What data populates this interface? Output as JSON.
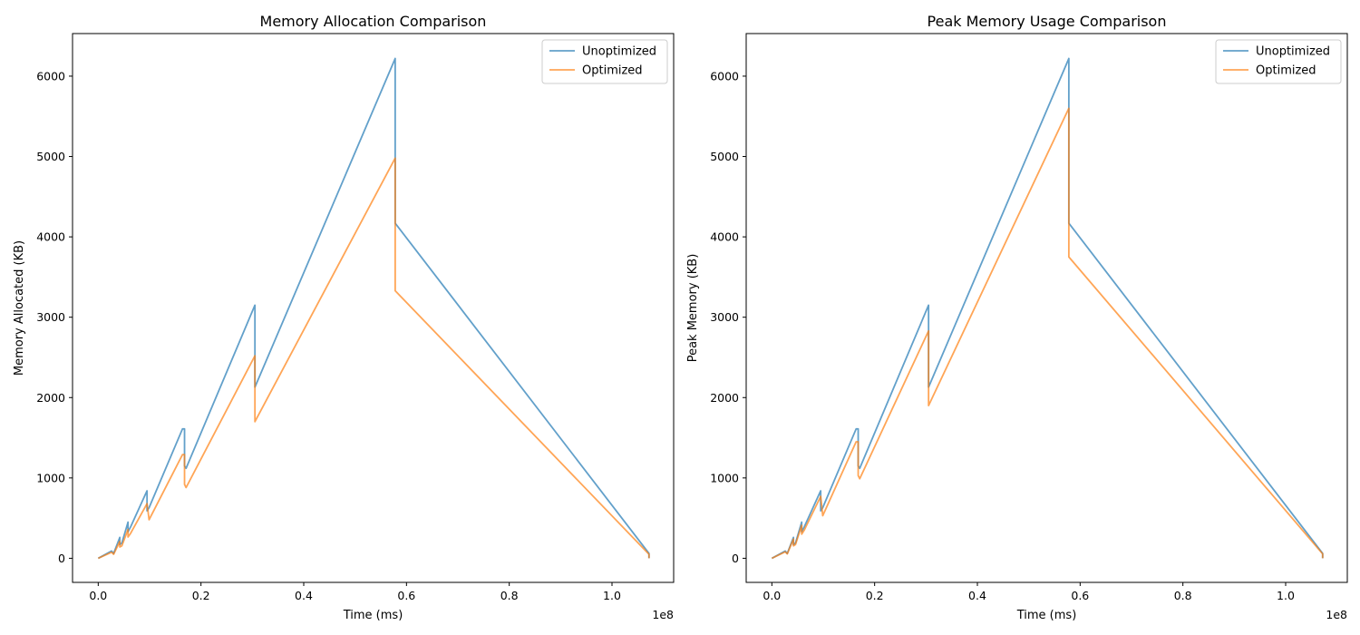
{
  "chart_data": [
    {
      "type": "line",
      "title": "Memory Allocation Comparison",
      "xlabel": "Time (ms)",
      "ylabel": "Memory Allocated (KB)",
      "x_offset_label": "1e8",
      "xlim": [
        -0.05,
        1.12
      ],
      "ylim": [
        -300,
        6530
      ],
      "xticks": [
        0.0,
        0.2,
        0.4,
        0.6,
        0.8,
        1.0
      ],
      "xtick_labels": [
        "0.0",
        "0.2",
        "0.4",
        "0.6",
        "0.8",
        "1.0"
      ],
      "yticks": [
        0,
        1000,
        2000,
        3000,
        4000,
        5000,
        6000
      ],
      "ytick_labels": [
        "0",
        "1000",
        "2000",
        "3000",
        "4000",
        "5000",
        "6000"
      ],
      "legend": "top-right",
      "series": [
        {
          "name": "Unoptimized",
          "color": "#1f77b4",
          "x": [
            0.0,
            0.026,
            0.03,
            0.042,
            0.042,
            0.046,
            0.058,
            0.058,
            0.063,
            0.095,
            0.095,
            0.099,
            0.164,
            0.168,
            0.168,
            0.171,
            0.305,
            0.305,
            0.305,
            0.578,
            0.578,
            0.578,
            1.072,
            1.072
          ],
          "y": [
            0,
            90,
            60,
            260,
            170,
            190,
            450,
            330,
            390,
            840,
            590,
            630,
            1610,
            1610,
            1150,
            1120,
            3150,
            2350,
            2130,
            6220,
            4600,
            4170,
            60,
            0
          ]
        },
        {
          "name": "Optimized",
          "color": "#ff7f0e",
          "x": [
            0.0,
            0.026,
            0.03,
            0.042,
            0.042,
            0.046,
            0.058,
            0.058,
            0.063,
            0.095,
            0.099,
            0.164,
            0.168,
            0.168,
            0.171,
            0.305,
            0.305,
            0.578,
            0.578,
            1.072,
            1.072
          ],
          "y": [
            0,
            75,
            50,
            210,
            140,
            155,
            360,
            265,
            310,
            680,
            480,
            1290,
            1290,
            920,
            880,
            2520,
            1700,
            4980,
            3330,
            50,
            0
          ]
        }
      ]
    },
    {
      "type": "line",
      "title": "Peak Memory Usage Comparison",
      "xlabel": "Time (ms)",
      "ylabel": "Peak Memory (KB)",
      "x_offset_label": "1e8",
      "xlim": [
        -0.05,
        1.12
      ],
      "ylim": [
        -300,
        6530
      ],
      "xticks": [
        0.0,
        0.2,
        0.4,
        0.6,
        0.8,
        1.0
      ],
      "xtick_labels": [
        "0.0",
        "0.2",
        "0.4",
        "0.6",
        "0.8",
        "1.0"
      ],
      "yticks": [
        0,
        1000,
        2000,
        3000,
        4000,
        5000,
        6000
      ],
      "ytick_labels": [
        "0",
        "1000",
        "2000",
        "3000",
        "4000",
        "5000",
        "6000"
      ],
      "legend": "top-right",
      "series": [
        {
          "name": "Unoptimized",
          "color": "#1f77b4",
          "x": [
            0.0,
            0.026,
            0.03,
            0.042,
            0.042,
            0.046,
            0.058,
            0.058,
            0.063,
            0.095,
            0.095,
            0.099,
            0.164,
            0.168,
            0.168,
            0.171,
            0.305,
            0.305,
            0.305,
            0.578,
            0.578,
            0.578,
            1.072,
            1.072
          ],
          "y": [
            0,
            90,
            60,
            260,
            170,
            190,
            450,
            330,
            390,
            840,
            590,
            630,
            1610,
            1610,
            1150,
            1120,
            3150,
            2350,
            2130,
            6220,
            4600,
            4170,
            60,
            0
          ]
        },
        {
          "name": "Optimized",
          "color": "#ff7f0e",
          "x": [
            0.0,
            0.026,
            0.03,
            0.042,
            0.042,
            0.046,
            0.058,
            0.058,
            0.063,
            0.095,
            0.099,
            0.164,
            0.168,
            0.168,
            0.171,
            0.305,
            0.305,
            0.578,
            0.578,
            1.072,
            1.072
          ],
          "y": [
            0,
            80,
            55,
            240,
            155,
            172,
            410,
            300,
            350,
            770,
            530,
            1450,
            1450,
            1030,
            990,
            2830,
            1900,
            5600,
            3750,
            55,
            0
          ]
        }
      ]
    }
  ]
}
